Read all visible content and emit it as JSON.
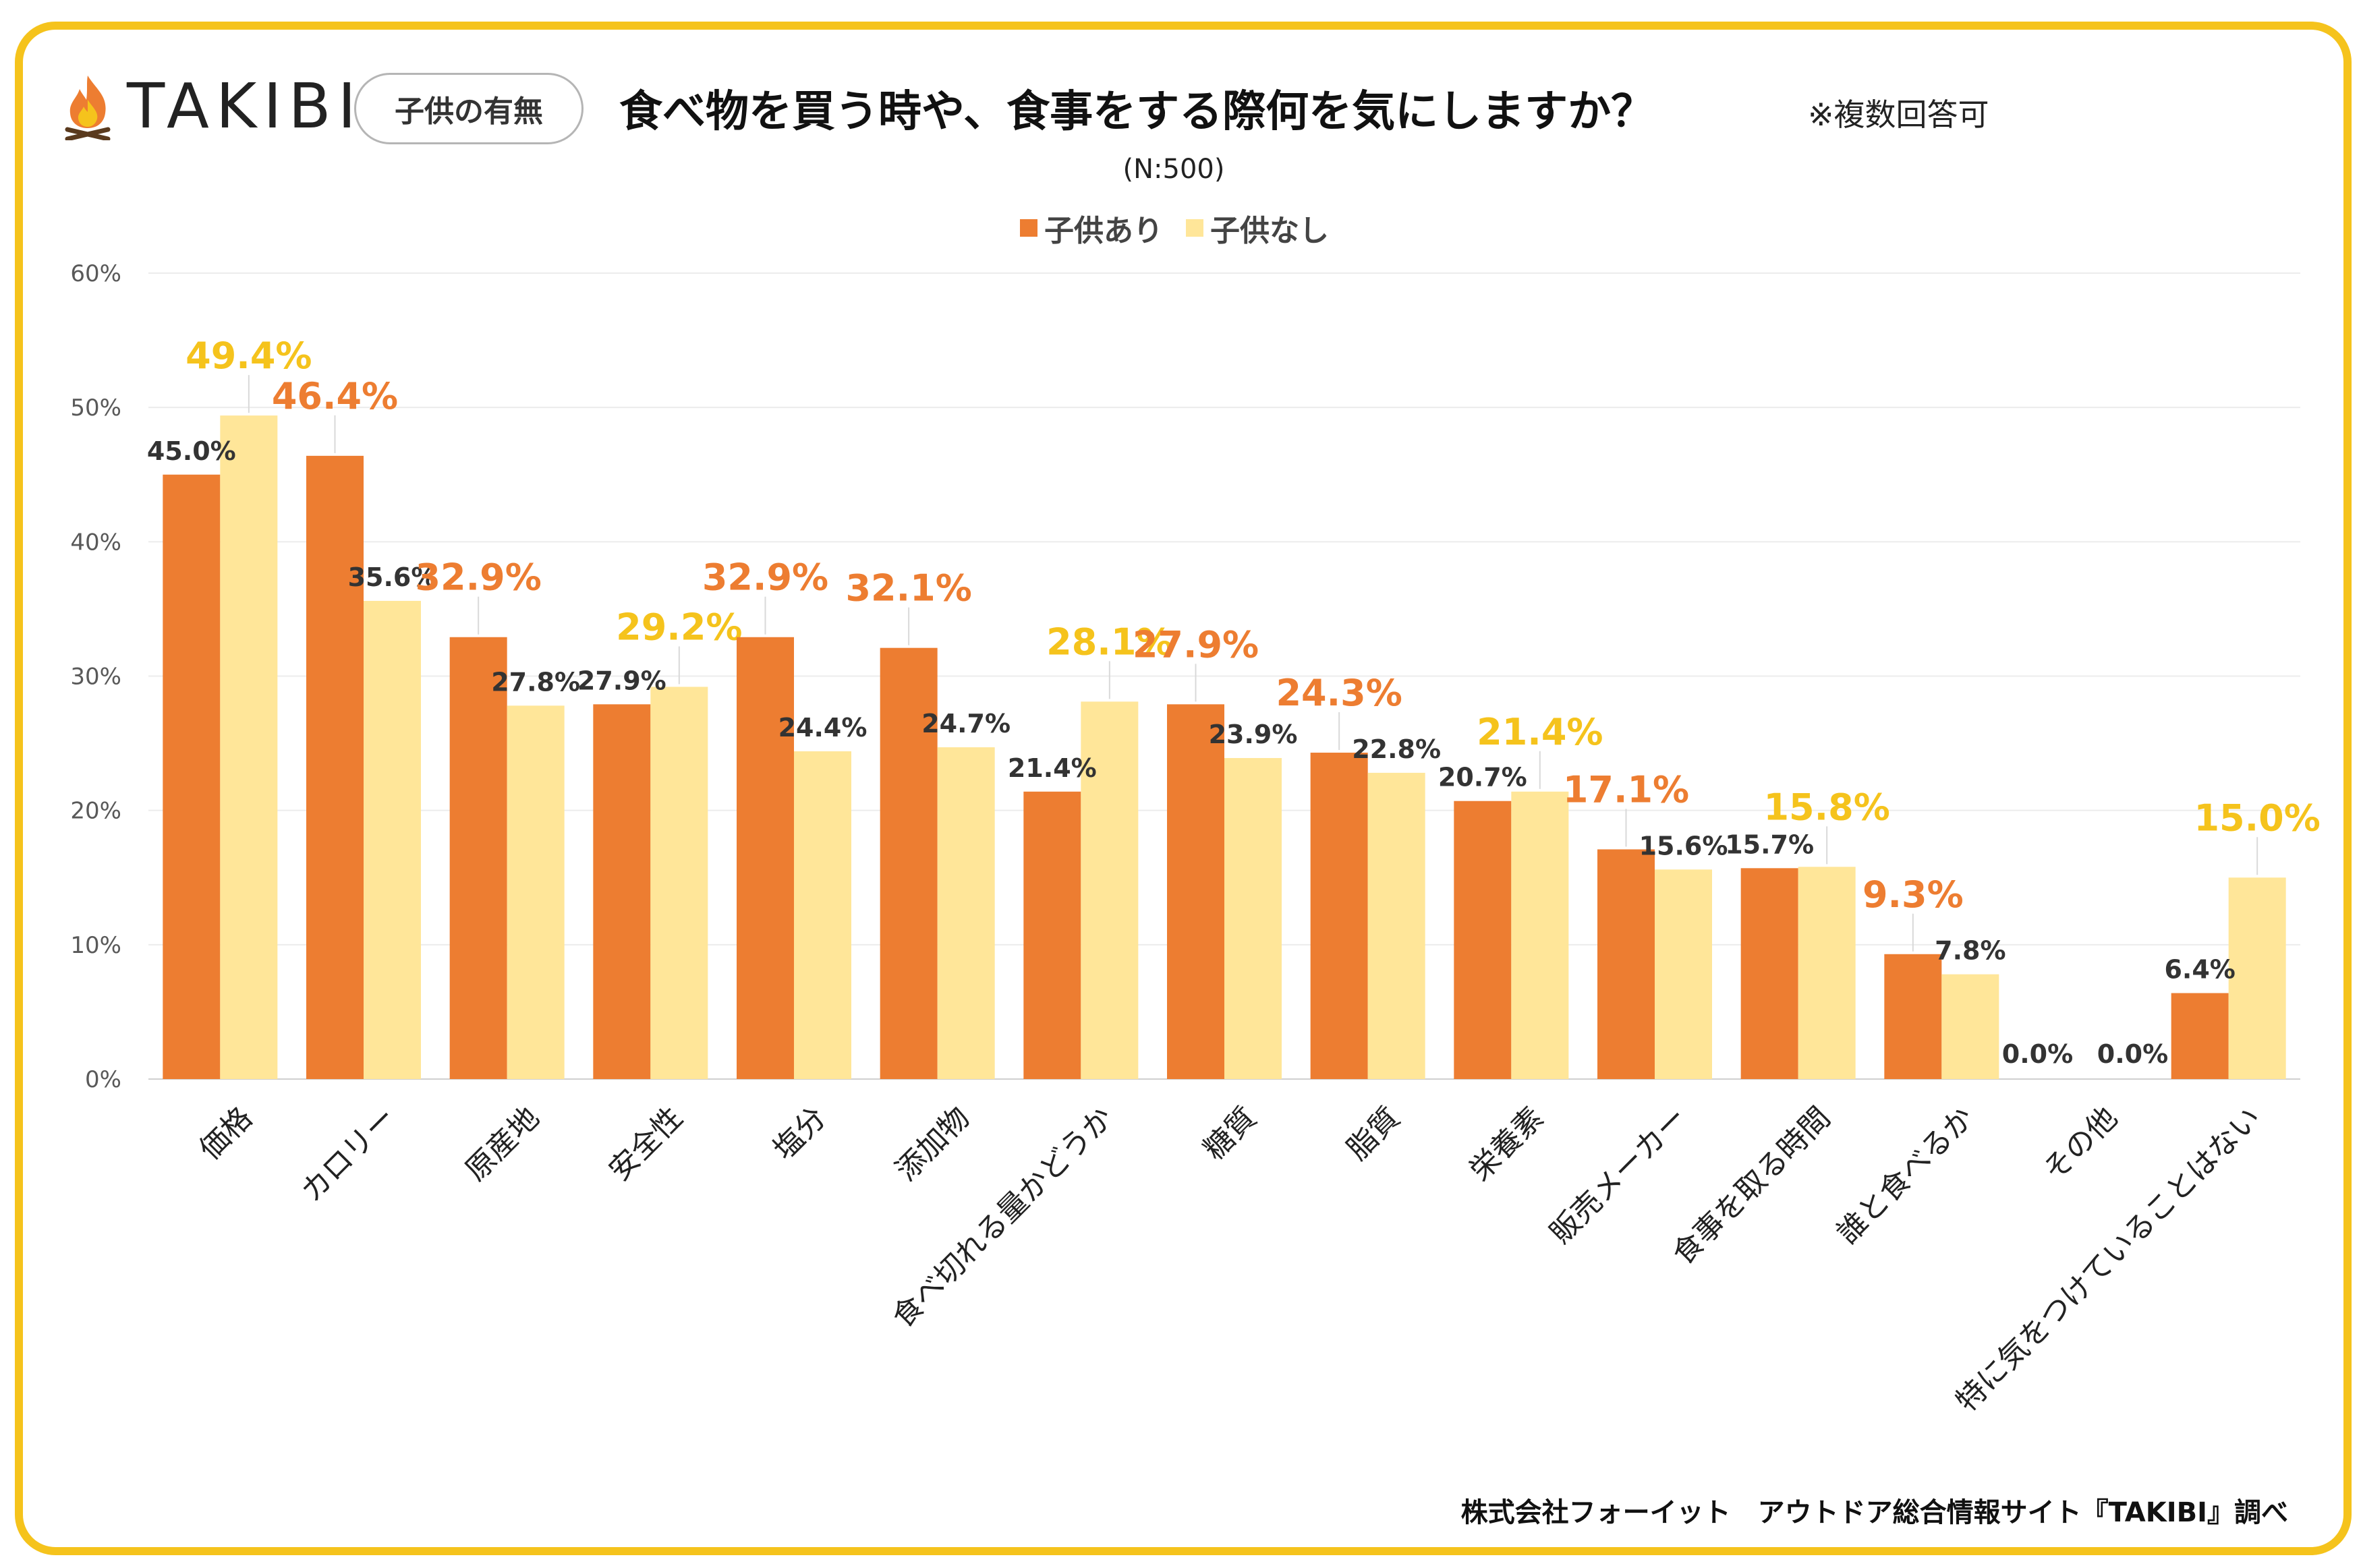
{
  "brand": {
    "logo_text": "TAKIBI",
    "icon": "campfire-icon"
  },
  "tag_label": "子供の有無",
  "title": "食べ物を買う時や、食事をする際何を気にしますか？",
  "title_note": "※複数回答可",
  "sample_size": "(N:500)",
  "footer": "株式会社フォーイット　アウトドア総合情報サイト『TAKIBI』調べ",
  "colors": {
    "series1": "#ED7D31",
    "series2": "#FFE699",
    "highlight1": "#ED7D31",
    "highlight2": "#F5C31C",
    "frame": "#F5C31C"
  },
  "chart_data": {
    "type": "bar",
    "title": "食べ物を買う時や、食事をする際何を気にしますか？",
    "categories": [
      "価格",
      "カロリー",
      "原産地",
      "安全性",
      "塩分",
      "添加物",
      "食べ切れる量かどうか",
      "糖質",
      "脂質",
      "栄養素",
      "販売メーカー",
      "食事を取る時間",
      "誰と食べるか",
      "その他",
      "特に気をつけていることはない"
    ],
    "series": [
      {
        "name": "子供あり",
        "values": [
          45.0,
          46.4,
          32.9,
          27.9,
          32.9,
          32.1,
          21.4,
          27.9,
          24.3,
          20.7,
          17.1,
          15.7,
          9.3,
          0.0,
          6.4
        ]
      },
      {
        "name": "子供なし",
        "values": [
          49.4,
          35.6,
          27.8,
          29.2,
          24.4,
          24.7,
          28.1,
          23.9,
          22.8,
          21.4,
          15.6,
          15.8,
          7.8,
          0.0,
          15.0
        ]
      }
    ],
    "data_labels": [
      [
        "45.0%",
        "46.4%",
        "32.9%",
        "27.9%",
        "32.9%",
        "32.1%",
        "21.4%",
        "27.9%",
        "24.3%",
        "20.7%",
        "17.1%",
        "15.7%",
        "9.3%",
        "0.0%",
        "6.4%"
      ],
      [
        "49.4%",
        "35.6%",
        "27.8%",
        "29.2%",
        "24.4%",
        "24.7%",
        "28.1%",
        "23.9%",
        "22.8%",
        "21.4%",
        "15.6%",
        "15.8%",
        "7.8%",
        "0.0%",
        "15.0%"
      ]
    ],
    "highlighted_series": [
      1,
      0,
      0,
      1,
      0,
      0,
      1,
      0,
      0,
      1,
      0,
      1,
      0,
      null,
      1
    ],
    "y_ticks": [
      "0%",
      "10%",
      "20%",
      "30%",
      "40%",
      "50%",
      "60%"
    ],
    "ylim": [
      0,
      60
    ],
    "xlabel": "",
    "ylabel": "",
    "legend_position": "top-center",
    "grid": true
  }
}
